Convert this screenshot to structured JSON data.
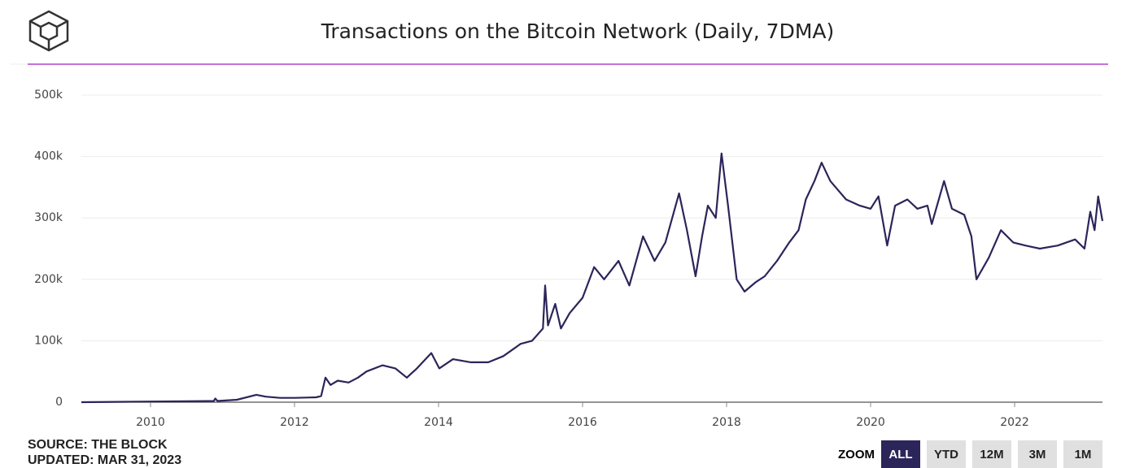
{
  "chart_data": {
    "type": "line",
    "title": "Transactions on the Bitcoin Network (Daily, 7DMA)",
    "xlim": [
      2009.04,
      2023.22
    ],
    "xticks": [
      2010,
      2012,
      2014,
      2016,
      2018,
      2020,
      2022
    ],
    "ylim": [
      0,
      500000
    ],
    "yticks": [
      0,
      {
        "value": 100000,
        "label": "100k"
      },
      {
        "value": 200000,
        "label": "200k"
      },
      {
        "value": 300000,
        "label": "300k"
      },
      {
        "value": 400000,
        "label": "400k"
      },
      {
        "value": 500000,
        "label": "500k"
      }
    ],
    "grid": true,
    "series": [
      {
        "name": "Transactions",
        "color": "#2b2559",
        "x": [
          2009.04,
          2010.0,
          2010.5,
          2010.88,
          2010.9,
          2010.93,
          2011.2,
          2011.47,
          2011.6,
          2011.8,
          2012.0,
          2012.3,
          2012.37,
          2012.43,
          2012.5,
          2012.6,
          2012.75,
          2012.88,
          2013.0,
          2013.22,
          2013.4,
          2013.56,
          2013.7,
          2013.9,
          2014.01,
          2014.2,
          2014.45,
          2014.69,
          2014.9,
          2015.14,
          2015.3,
          2015.45,
          2015.48,
          2015.52,
          2015.62,
          2015.7,
          2015.82,
          2016.0,
          2016.16,
          2016.3,
          2016.5,
          2016.65,
          2016.84,
          2017.0,
          2017.15,
          2017.34,
          2017.45,
          2017.57,
          2017.66,
          2017.74,
          2017.85,
          2017.93,
          2018.02,
          2018.14,
          2018.25,
          2018.4,
          2018.53,
          2018.7,
          2018.87,
          2019.0,
          2019.1,
          2019.22,
          2019.32,
          2019.44,
          2019.55,
          2019.66,
          2019.85,
          2020.0,
          2020.11,
          2020.23,
          2020.34,
          2020.51,
          2020.65,
          2020.79,
          2020.85,
          2021.02,
          2021.13,
          2021.3,
          2021.4,
          2021.47,
          2021.64,
          2021.81,
          2021.98,
          2022.15,
          2022.35,
          2022.6,
          2022.84,
          2022.97,
          2023.05,
          2023.11,
          2023.16,
          2023.22
        ],
        "values": [
          0,
          1000,
          1500,
          2000,
          6000,
          2000,
          4000,
          12000,
          9000,
          7000,
          7000,
          8000,
          10000,
          40000,
          28000,
          35000,
          32000,
          40000,
          50000,
          60000,
          55000,
          40000,
          55000,
          80000,
          55000,
          70000,
          65000,
          65000,
          75000,
          95000,
          100000,
          120000,
          190000,
          125000,
          160000,
          120000,
          145000,
          170000,
          220000,
          200000,
          230000,
          190000,
          270000,
          230000,
          260000,
          340000,
          280000,
          205000,
          270000,
          320000,
          300000,
          405000,
          320000,
          200000,
          180000,
          195000,
          205000,
          230000,
          260000,
          280000,
          330000,
          360000,
          390000,
          360000,
          345000,
          330000,
          320000,
          315000,
          335000,
          255000,
          320000,
          330000,
          315000,
          320000,
          290000,
          360000,
          315000,
          305000,
          270000,
          200000,
          235000,
          280000,
          260000,
          255000,
          250000,
          255000,
          265000,
          250000,
          310000,
          280000,
          335000,
          295000
        ]
      }
    ]
  },
  "source": "SOURCE: THE BLOCK",
  "updated": "UPDATED: MAR 31, 2023",
  "zoom": {
    "label": "ZOOM",
    "buttons": [
      "ALL",
      "YTD",
      "12M",
      "3M",
      "1M"
    ]
  }
}
